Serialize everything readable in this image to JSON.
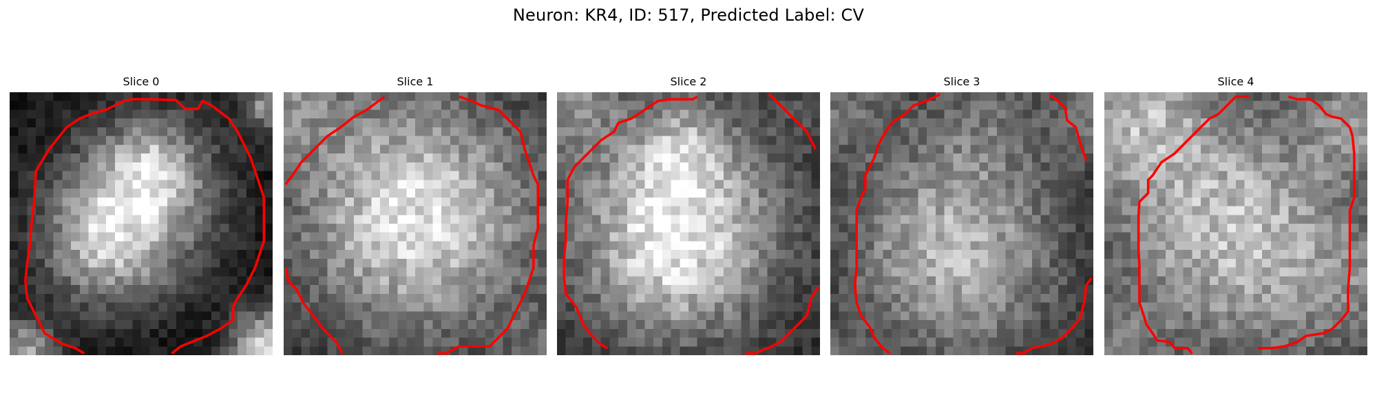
{
  "figure": {
    "title": "Neuron: KR4, ID: 517, Predicted Label: CV"
  },
  "panels": [
    {
      "title": "Slice 0"
    },
    {
      "title": "Slice 1"
    },
    {
      "title": "Slice 2"
    },
    {
      "title": "Slice 3"
    },
    {
      "title": "Slice 4"
    }
  ],
  "colors": {
    "contour": "#ff0000",
    "colormap": "gray"
  }
}
